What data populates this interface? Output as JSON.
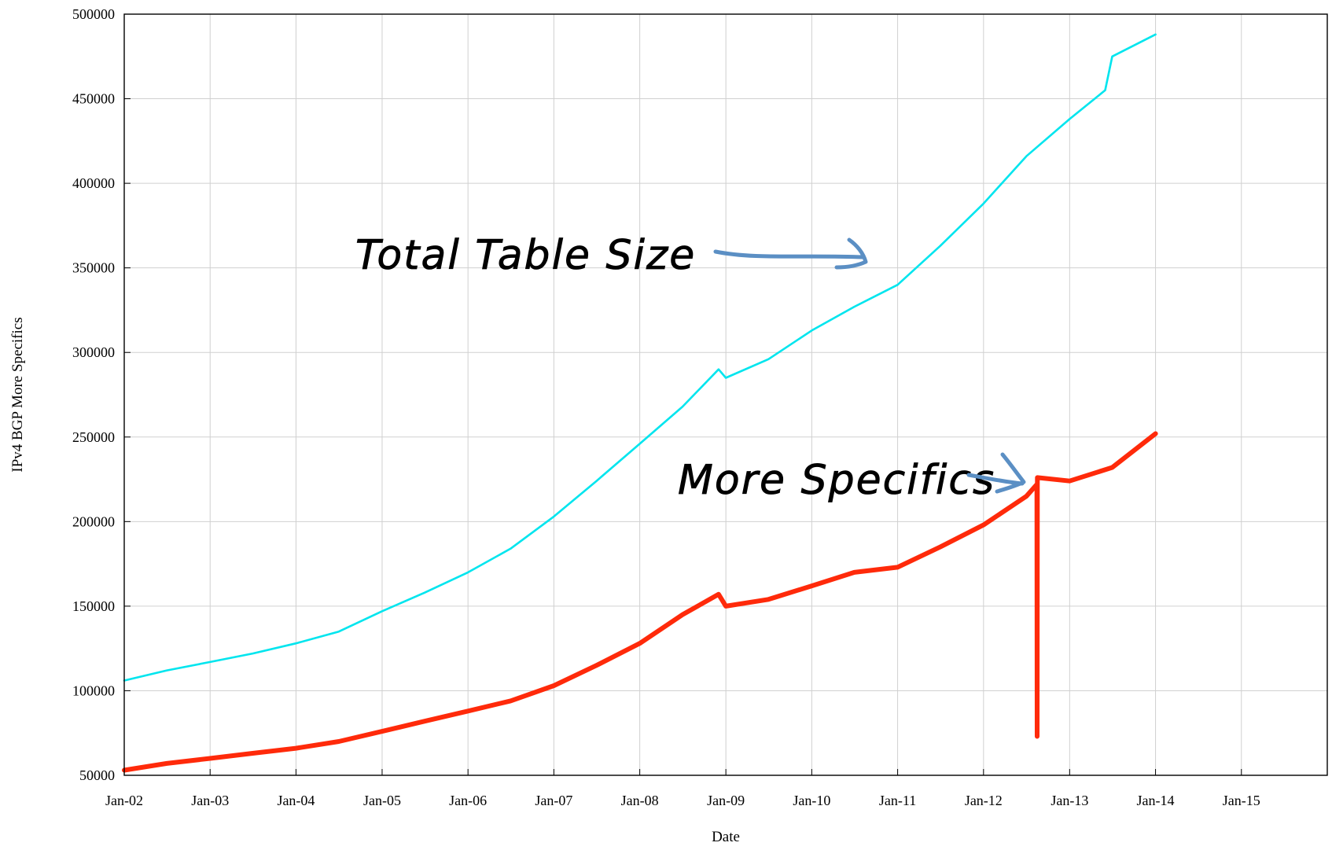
{
  "chart_data": {
    "type": "line",
    "title": "",
    "xlabel": "Date",
    "ylabel": "IPv4 BGP More Specifics",
    "x_tick_labels": [
      "Jan-02",
      "Jan-03",
      "Jan-04",
      "Jan-05",
      "Jan-06",
      "Jan-07",
      "Jan-08",
      "Jan-09",
      "Jan-10",
      "Jan-11",
      "Jan-12",
      "Jan-13",
      "Jan-14",
      "Jan-15"
    ],
    "y_tick_labels": [
      "50000",
      "100000",
      "150000",
      "200000",
      "250000",
      "300000",
      "350000",
      "400000",
      "450000",
      "500000"
    ],
    "xlim": [
      "2002-01-01",
      "2016-01-01"
    ],
    "ylim": [
      50000,
      500000
    ],
    "grid": true,
    "legend": "none",
    "series": [
      {
        "color": "#00e5ee",
        "x": [
          "2002-01-01",
          "2002-07-01",
          "2003-01-01",
          "2003-07-01",
          "2004-01-01",
          "2004-07-01",
          "2005-01-01",
          "2005-07-01",
          "2006-01-01",
          "2006-07-01",
          "2007-01-01",
          "2007-07-01",
          "2008-01-01",
          "2008-07-01",
          "2008-12-01",
          "2009-01-01",
          "2009-07-01",
          "2010-01-01",
          "2010-07-01",
          "2011-01-01",
          "2011-07-01",
          "2012-01-01",
          "2012-07-01",
          "2013-01-01",
          "2013-06-01",
          "2013-07-01",
          "2014-01-01"
        ],
        "values": [
          106000,
          112000,
          117000,
          122000,
          128000,
          135000,
          147000,
          158000,
          170000,
          184000,
          203000,
          224000,
          246000,
          268000,
          290000,
          285000,
          296000,
          313000,
          327000,
          340000,
          363000,
          388000,
          416000,
          438000,
          455000,
          475000,
          488000
        ]
      },
      {
        "color": "#ff2a0a",
        "x": [
          "2002-01-01",
          "2002-07-01",
          "2003-01-01",
          "2003-07-01",
          "2004-01-01",
          "2004-07-01",
          "2005-01-01",
          "2005-07-01",
          "2006-01-01",
          "2006-07-01",
          "2007-01-01",
          "2007-07-01",
          "2008-01-01",
          "2008-07-01",
          "2008-12-01",
          "2009-01-01",
          "2009-07-01",
          "2010-01-01",
          "2010-07-01",
          "2011-01-01",
          "2011-07-01",
          "2012-01-01",
          "2012-07-01",
          "2012-08-15",
          "2012-08-16",
          "2012-08-17",
          "2013-01-01",
          "2013-07-01",
          "2014-01-01"
        ],
        "values": [
          53000,
          57000,
          60000,
          63000,
          66000,
          70000,
          76000,
          82000,
          88000,
          94000,
          103000,
          115000,
          128000,
          145000,
          157000,
          150000,
          154000,
          162000,
          170000,
          173000,
          185000,
          198000,
          215000,
          222000,
          73000,
          226000,
          224000,
          232000,
          252000
        ]
      }
    ],
    "annotations": [
      "Total Table Size",
      "More Specifics"
    ]
  }
}
